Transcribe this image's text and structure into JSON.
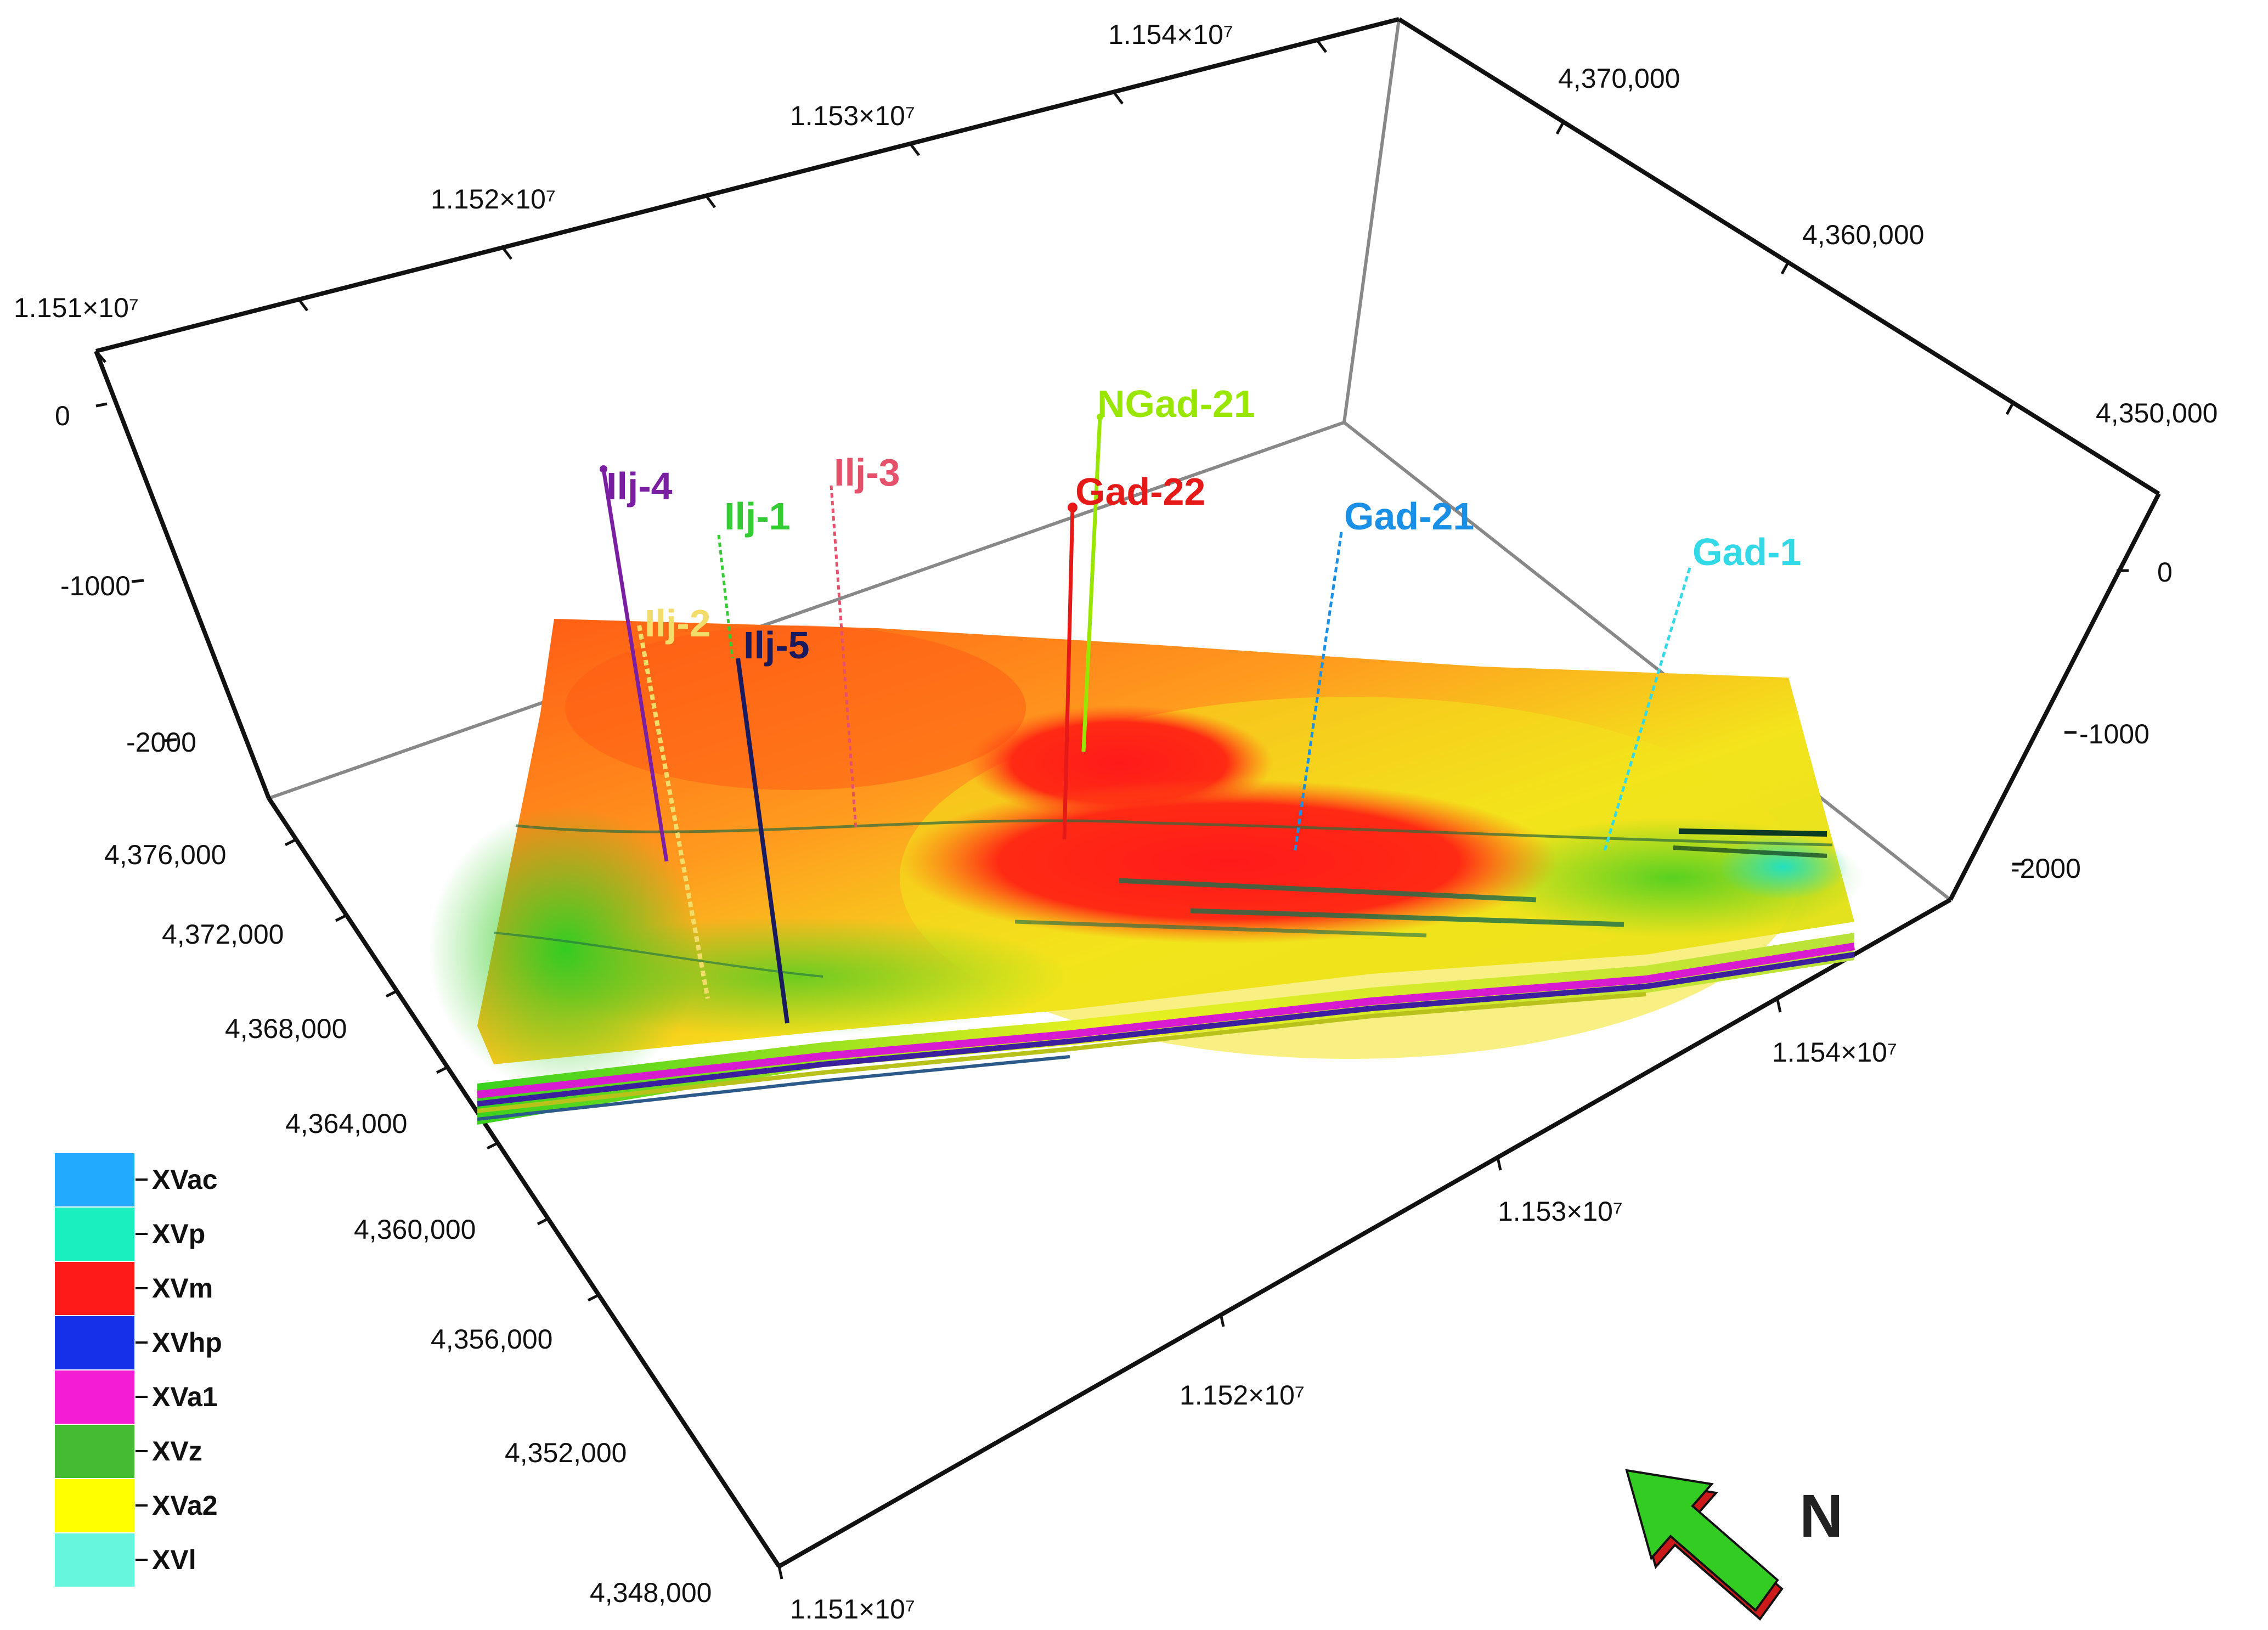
{
  "axes": {
    "top_x_ticks": [
      "1.151×10⁷",
      "1.152×10⁷",
      "1.153×10⁷",
      "1.154×10⁷"
    ],
    "top_y_ticks": [
      "4,370,000",
      "4,360,000",
      "4,350,000"
    ],
    "left_z_ticks": [
      "0",
      "-1000",
      "-2000"
    ],
    "right_z_ticks": [
      "0",
      "-1000",
      "-2000"
    ],
    "bottom_left_ticks": [
      "4,376,000",
      "4,372,000",
      "4,368,000",
      "4,364,000",
      "4,360,000",
      "4,356,000",
      "4,352,000",
      "4,348,000"
    ],
    "bottom_right_ticks": [
      "1.151×10⁷",
      "1.152×10⁷",
      "1.153×10⁷",
      "1.154×10⁷"
    ]
  },
  "wells": [
    {
      "name": "Ilj-4",
      "color": "#7b1fa2"
    },
    {
      "name": "Ilj-2",
      "color": "#f2dc6a"
    },
    {
      "name": "Ilj-1",
      "color": "#33cc33"
    },
    {
      "name": "Ilj-5",
      "color": "#1a1a5e"
    },
    {
      "name": "Ilj-3",
      "color": "#e5506a"
    },
    {
      "name": "NGad-21",
      "color": "#99e600"
    },
    {
      "name": "Gad-22",
      "color": "#e61919"
    },
    {
      "name": "Gad-21",
      "color": "#1a8fe6"
    },
    {
      "name": "Gad-1",
      "color": "#33d9e6"
    }
  ],
  "legend": [
    {
      "label": "XVac",
      "color": "#22aaff"
    },
    {
      "label": "XVp",
      "color": "#19f0c0"
    },
    {
      "label": "XVm",
      "color": "#ff1a1a"
    },
    {
      "label": "XVhp",
      "color": "#1530e8"
    },
    {
      "label": "XVa1",
      "color": "#f51cd6"
    },
    {
      "label": "XVz",
      "color": "#44bb33"
    },
    {
      "label": "XVa2",
      "color": "#ffff00"
    },
    {
      "label": "XVl",
      "color": "#66f5dd"
    }
  ],
  "north": {
    "label": "N"
  }
}
